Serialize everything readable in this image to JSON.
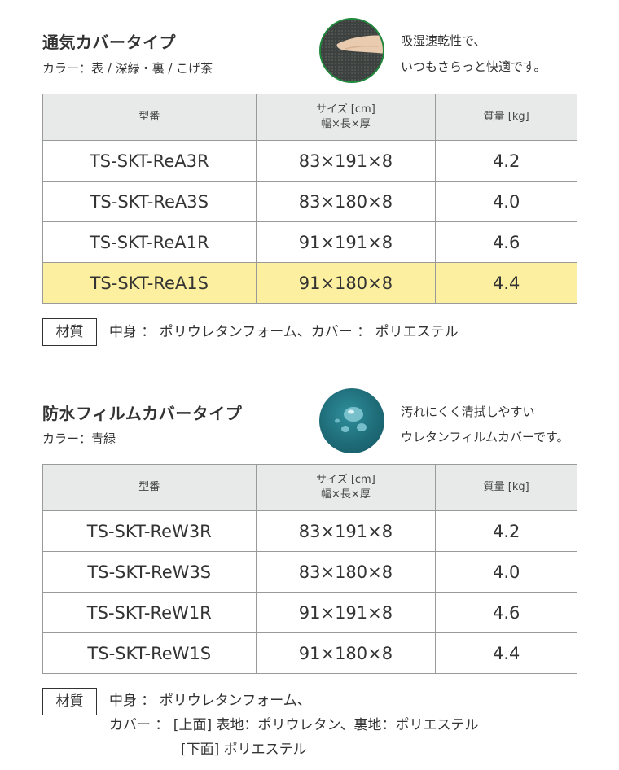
{
  "section_a": {
    "title": "通気カバータイプ",
    "color_line": "カラー：表 / 深緑・裏 / こげ茶",
    "caption_1": "吸湿速乾性で、",
    "caption_2": "いつもさらっと快適です。",
    "badge_icon": "hand-on-mesh-icon",
    "headers": [
      "型番",
      "サイズ [cm]",
      "幅×長×厚",
      "質量 [kg]"
    ],
    "rows": [
      {
        "model": "TS-SKT-ReA3R",
        "size": "83×191×8",
        "weight": "4.2"
      },
      {
        "model": "TS-SKT-ReA3S",
        "size": "83×180×8",
        "weight": "4.0"
      },
      {
        "model": "TS-SKT-ReA1R",
        "size": "91×191×8",
        "weight": "4.6"
      },
      {
        "model": "TS-SKT-ReA1S",
        "size": "91×180×8",
        "weight": "4.4"
      }
    ],
    "highlight_color": "#fcef9f",
    "material_label": "材質",
    "material_text": "中身 ： ポリウレタンフォーム、カバー ： ポリエステル"
  },
  "section_b": {
    "title": "防水フィルムカバータイプ",
    "color_line": "カラー：青緑",
    "caption_1": "汚れにくく清拭しやすい",
    "caption_2": "ウレタンフィルムカバーです。",
    "badge_icon": "water-droplets-icon",
    "headers": [
      "型番",
      "サイズ [cm]",
      "幅×長×厚",
      "質量 [kg]"
    ],
    "rows": [
      {
        "model": "TS-SKT-ReW3R",
        "size": "83×191×8",
        "weight": "4.2"
      },
      {
        "model": "TS-SKT-ReW3S",
        "size": "83×180×8",
        "weight": "4.0"
      },
      {
        "model": "TS-SKT-ReW1R",
        "size": "91×191×8",
        "weight": "4.6"
      },
      {
        "model": "TS-SKT-ReW1S",
        "size": "91×180×8",
        "weight": "4.4"
      }
    ],
    "material_label": "材質",
    "material_line_1": "中身 ： ポリウレタンフォーム、",
    "material_line_2": "カバー ： [上面] 表地：ポリウレタン、裏地：ポリエステル",
    "material_line_3": "[下面] ポリエステル"
  },
  "colors": {
    "title_highlight": "#cfe6ea",
    "header_bg": "#e8eaea",
    "badge_border": "#1f8a3c",
    "badge_teal": "#1e6c78"
  }
}
